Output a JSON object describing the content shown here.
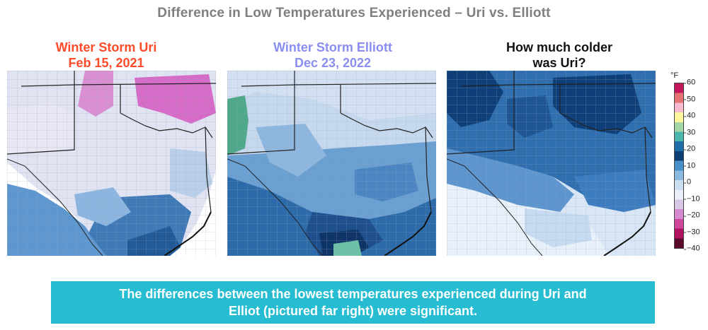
{
  "title": "Difference in Low Temperatures Experienced – Uri vs. Elliott",
  "panels": [
    {
      "line1": "Winter Storm Uri",
      "line2": "Feb 15, 2021",
      "color": "#ff4a2a"
    },
    {
      "line1": "Winter Storm Elliott",
      "line2": "Dec 23, 2022",
      "color": "#8a8ef0"
    },
    {
      "line1": "How much colder",
      "line2": "was Uri?",
      "color": "#111111"
    }
  ],
  "legend": {
    "unit": "°F",
    "ticks": [
      "60",
      "50",
      "40",
      "30",
      "20",
      "10",
      "0",
      "−10",
      "−20",
      "−30",
      "−40"
    ],
    "colors_top_to_bottom": [
      "#c2185b",
      "#e57373",
      "#f8bbd0",
      "#fff59d",
      "#a5d6a7",
      "#4db6ac",
      "#1f6ea8",
      "#0d3f75",
      "#4a90c8",
      "#8bb9df",
      "#c9dff0",
      "#e9eef8",
      "#d8c8e6",
      "#d58ad0",
      "#d0459c",
      "#b0125f",
      "#5a0b2c"
    ]
  },
  "banner": {
    "line1": "The differences between the lowest temperatures experienced during Uri and",
    "line2": "Elliot (pictured far right) were significant."
  }
}
